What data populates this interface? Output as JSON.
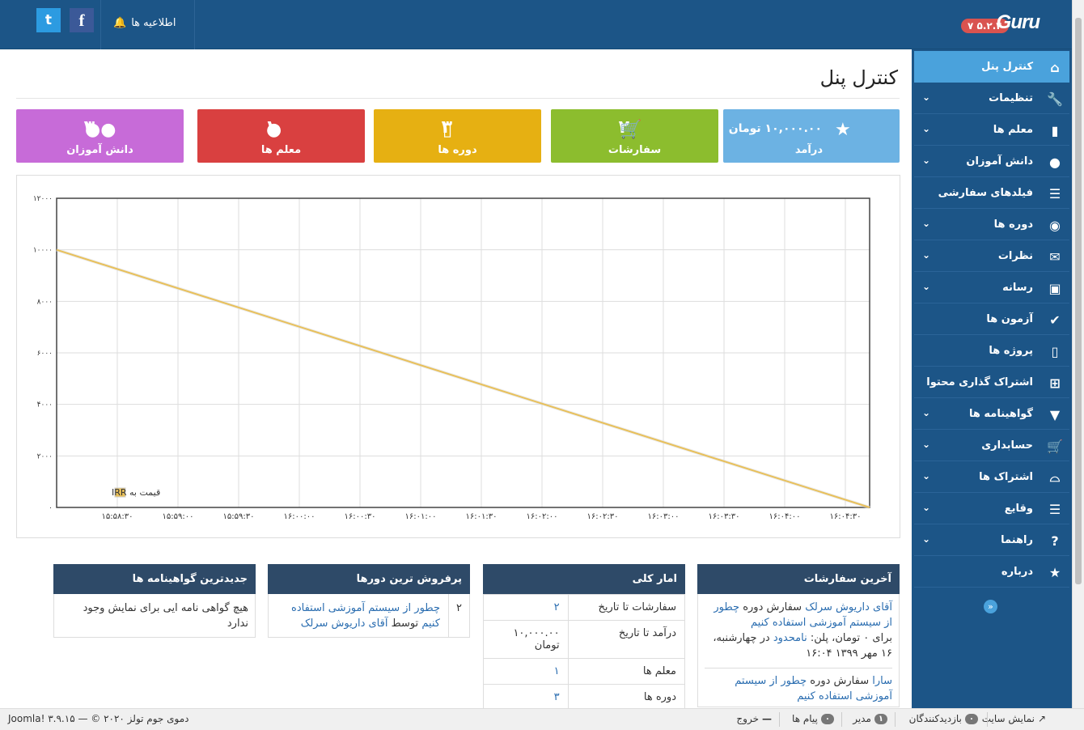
{
  "header": {
    "logo": "Guru",
    "version": "۷ ۵.۲.۴",
    "notifications": "اطلاعیه ها",
    "twitter_icon": "twitter-icon",
    "facebook_icon": "facebook-icon"
  },
  "page_title": "کنترل پنل",
  "sidebar": {
    "items": [
      {
        "label": "کنترل پنل",
        "icon": "home-icon",
        "active": true,
        "chevron": false
      },
      {
        "label": "تنظیمات",
        "icon": "wrench-icon",
        "chevron": true
      },
      {
        "label": "معلم ها",
        "icon": "book-icon",
        "chevron": true
      },
      {
        "label": "دانش آموزان",
        "icon": "user-icon",
        "chevron": true
      },
      {
        "label": "فیلدهای سفارشی",
        "icon": "list-icon",
        "chevron": false
      },
      {
        "label": "دوره ها",
        "icon": "eye-icon",
        "chevron": true
      },
      {
        "label": "نظرات",
        "icon": "comments-icon",
        "chevron": true
      },
      {
        "label": "رسانه",
        "icon": "image-icon",
        "chevron": true
      },
      {
        "label": "آزمون ها",
        "icon": "check-circle-icon",
        "chevron": false
      },
      {
        "label": "پروژه ها",
        "icon": "file-icon",
        "chevron": false
      },
      {
        "label": "اشتراک گذاری محتوا",
        "icon": "file-add-icon",
        "chevron": false
      },
      {
        "label": "گواهینامه ها",
        "icon": "bookmark-icon",
        "chevron": true
      },
      {
        "label": "حسابداری",
        "icon": "cart-icon",
        "chevron": true
      },
      {
        "label": "اشتراک ها",
        "icon": "inbox-icon",
        "chevron": true
      },
      {
        "label": "وقایع",
        "icon": "list-icon",
        "chevron": true
      },
      {
        "label": "راهنما",
        "icon": "question-icon",
        "chevron": true
      },
      {
        "label": "درباره",
        "icon": "star-icon",
        "chevron": false
      }
    ],
    "collapse_icon": "double-chevron-icon"
  },
  "cards": [
    {
      "num": "۱۰,۰۰۰.۰۰ تومان",
      "label": "درآمد",
      "color": "#6cb2e3",
      "icon": "star-icon"
    },
    {
      "num": "۲",
      "label": "سفارشات",
      "color": "#8cbd2e",
      "icon": "cart-icon"
    },
    {
      "num": "۳",
      "label": "دوره ها",
      "color": "#e6b012",
      "icon": "file-icon"
    },
    {
      "num": "۱",
      "label": "معلم ها",
      "color": "#d94040",
      "icon": "user-icon"
    },
    {
      "num": "۳",
      "label": "دانش آموزان",
      "color": "#c76bd8",
      "icon": "users-icon"
    }
  ],
  "chart_data": {
    "type": "line",
    "x": [
      "۱۵:۵۸:۳۰",
      "۱۵:۵۹:۰۰",
      "۱۵:۵۹:۳۰",
      "۱۶:۰۰:۰۰",
      "۱۶:۰۰:۳۰",
      "۱۶:۰۱:۰۰",
      "۱۶:۰۱:۳۰",
      "۱۶:۰۲:۰۰",
      "۱۶:۰۲:۳۰",
      "۱۶:۰۳:۰۰",
      "۱۶:۰۳:۳۰",
      "۱۶:۰۴:۰۰",
      "۱۶:۰۴:۳۰"
    ],
    "series": [
      {
        "name": "قیمت به IRR",
        "color": "#e8c05a",
        "points": [
          [
            0,
            10000
          ],
          [
            13.4,
            0
          ]
        ]
      }
    ],
    "yticks": [
      "۰",
      "۲۰۰۰",
      "۴۰۰۰",
      "۶۰۰۰",
      "۸۰۰۰",
      "۱۰۰۰۰",
      "۱۲۰۰۰"
    ],
    "ylim": [
      0,
      12000
    ],
    "grid": true,
    "legend": "bottom-left"
  },
  "panels": {
    "orders": {
      "title": "آخرین سفارشات",
      "o1_user": "آقای داریوش سرلک",
      "o1_mid": " سفارش دوره ",
      "o1_course": "چطور از سیستم آموزشی استفاده کنیم",
      "o1_tail1": "برای ۰ تومان، پلن: ",
      "o1_plan": "نامحدود",
      "o1_tail2": " در چهارشنبه، ۱۶ مهر ۱۳۹۹ ۱۶:۰۴",
      "o2_user": "سارا",
      "o2_mid": " سفارش دوره ",
      "o2_course": "چطور از سیستم آموزشی استفاده کنیم"
    },
    "stats": {
      "title": "امار کلی",
      "rows": [
        {
          "k": "سفارشات تا تاریخ",
          "v": "۲"
        },
        {
          "k": "درآمد تا تاریخ",
          "v": "۱۰,۰۰۰.۰۰ تومان"
        },
        {
          "k": "معلم ها",
          "v": "۱"
        },
        {
          "k": "دوره ها",
          "v": "۳"
        }
      ]
    },
    "bestsellers": {
      "title": "پرفروش ترین دورها",
      "num": "۲",
      "course": "چطور از سیستم آموزشی استفاده کنیم",
      "by": " توسط ",
      "author": "آقای داریوش سرلک"
    },
    "certs": {
      "title": "جدیدترین گواهینامه ها",
      "empty": "هیچ گواهی نامه ایی برای نمایش وجود ندارد"
    }
  },
  "footer": {
    "view_site": "نمایش سایت",
    "visitors_count": "۰",
    "visitors": "بازدیدکنندگان",
    "admins_count": "۱",
    "admins": "مدیر",
    "messages_count": "۰",
    "messages": "پیام ها",
    "logout": "خروج",
    "copyright": "دموی جوم تولز Joomla! ۳.۹.۱۵ — © ۲۰۲۰"
  }
}
